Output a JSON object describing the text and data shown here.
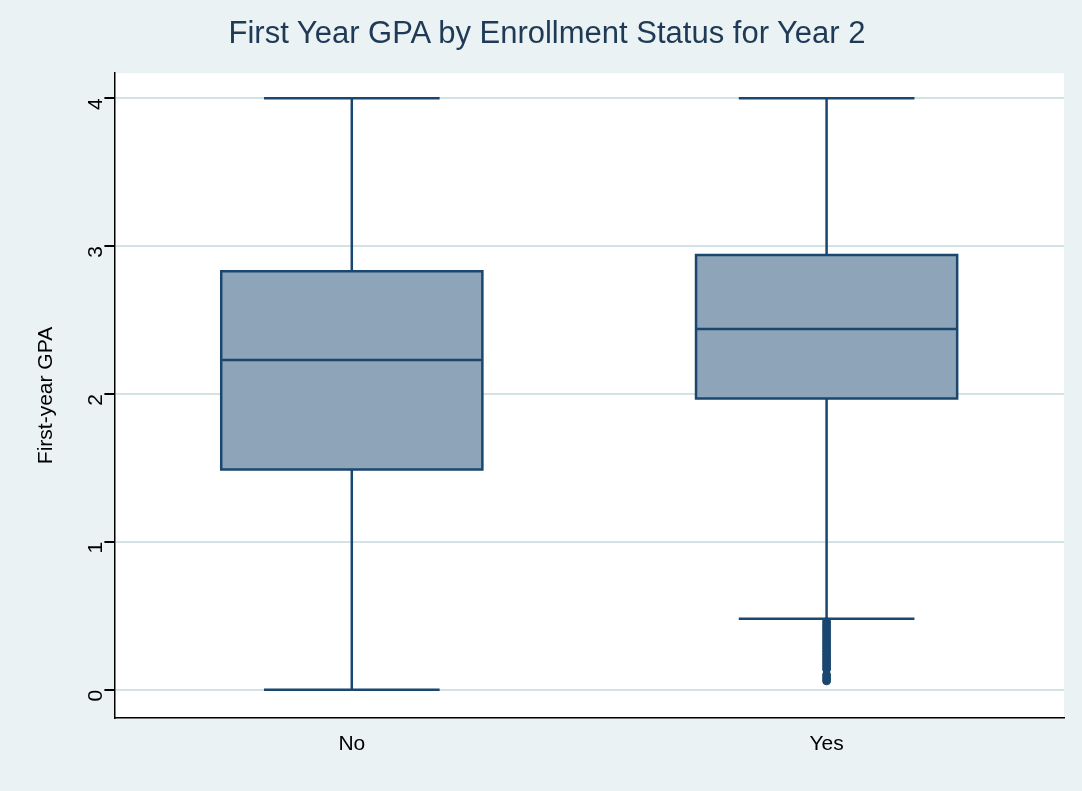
{
  "chart_data": {
    "type": "box",
    "title": "First Year GPA by Enrollment Status for Year 2",
    "ylabel": "First-year GPA",
    "categories": [
      "No",
      "Yes"
    ],
    "color": "#8ea4b8",
    "boxes": [
      {
        "low": 0,
        "q1": 1.49,
        "median": 2.23,
        "q3": 2.83,
        "high": 4
      },
      {
        "low": 0.48,
        "q1": 1.97,
        "median": 2.44,
        "q3": 2.94,
        "high": 4,
        "outliers": [
          0.46,
          0.44,
          0.42,
          0.4,
          0.38,
          0.36,
          0.34,
          0.32,
          0.3,
          0.28,
          0.26,
          0.24,
          0.22,
          0.2,
          0.18,
          0.16,
          0.14,
          0.1,
          0.08,
          0.06
        ]
      }
    ],
    "ylim": [
      -0.19,
      4.17
    ],
    "yticks": [
      0,
      1,
      2,
      3,
      4
    ],
    "grid": "y"
  }
}
